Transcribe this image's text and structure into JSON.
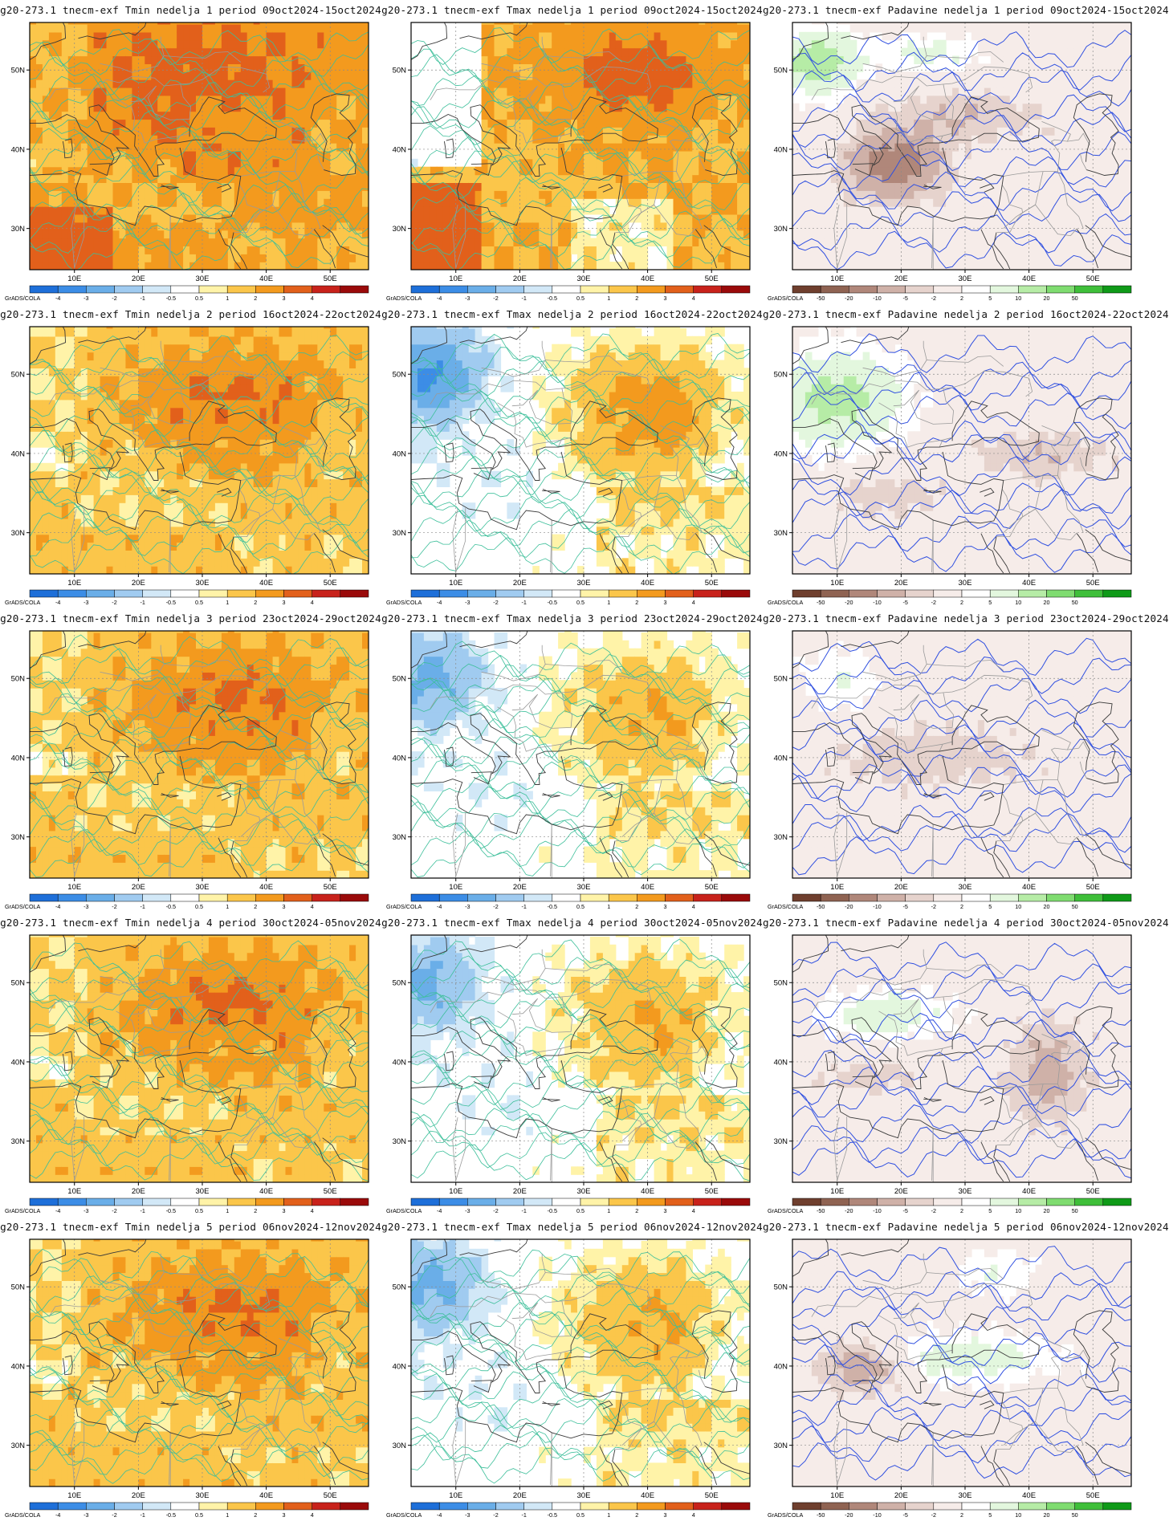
{
  "figure": {
    "panels": [
      {
        "title": "g20-273.1 tnecm-exf Tmin nedelja 1 period 09oct2024-15oct2024",
        "variable": "Tmin",
        "week": 1
      },
      {
        "title": "g20-273.1 tnecm-exf Tmax nedelja 1 period 09oct2024-15oct2024",
        "variable": "Tmax",
        "week": 1
      },
      {
        "title": "g20-273.1 tnecm-exf Padavine nedelja 1 period 09oct2024-15oct2024",
        "variable": "Padavine",
        "week": 1
      },
      {
        "title": "g20-273.1 tnecm-exf Tmin nedelja 2 period 16oct2024-22oct2024",
        "variable": "Tmin",
        "week": 2
      },
      {
        "title": "g20-273.1 tnecm-exf Tmax nedelja 2 period 16oct2024-22oct2024",
        "variable": "Tmax",
        "week": 2
      },
      {
        "title": "g20-273.1 tnecm-exf Padavine nedelja 2 period 16oct2024-22oct2024",
        "variable": "Padavine",
        "week": 2
      },
      {
        "title": "g20-273.1 tnecm-exf Tmin nedelja 3 period 23oct2024-29oct2024",
        "variable": "Tmin",
        "week": 3
      },
      {
        "title": "g20-273.1 tnecm-exf Tmax nedelja 3 period 23oct2024-29oct2024",
        "variable": "Tmax",
        "week": 3
      },
      {
        "title": "g20-273.1 tnecm-exf Padavine nedelja 3 period 23oct2024-29oct2024",
        "variable": "Padavine",
        "week": 3
      },
      {
        "title": "g20-273.1 tnecm-exf Tmin nedelja 4 period 30oct2024-05nov2024",
        "variable": "Tmin",
        "week": 4
      },
      {
        "title": "g20-273.1 tnecm-exf Tmax nedelja 4 period 30oct2024-05nov2024",
        "variable": "Tmax",
        "week": 4
      },
      {
        "title": "g20-273.1 tnecm-exf Padavine nedelja 4 period 30oct2024-05nov2024",
        "variable": "Padavine",
        "week": 4
      },
      {
        "title": "g20-273.1 tnecm-exf Tmin nedelja 5 period 06nov2024-12nov2024",
        "variable": "Tmin",
        "week": 5
      },
      {
        "title": "g20-273.1 tnecm-exf Tmax nedelja 5 period 06nov2024-12nov2024",
        "variable": "Tmax",
        "week": 5
      },
      {
        "title": "g20-273.1 tnecm-exf Padavine nedelja 5 period 06nov2024-12nov2024",
        "variable": "Padavine",
        "week": 5
      }
    ],
    "lon_ticks": [
      "10E",
      "20E",
      "30E",
      "40E",
      "50E"
    ],
    "lat_ticks": [
      "50N",
      "40N",
      "30N"
    ],
    "credit": "GrADS/COLA",
    "colorbars": {
      "temperature": {
        "labels": [
          "-4",
          "-3",
          "-2",
          "-1",
          "-0.5",
          "0.5",
          "1",
          "2",
          "3",
          "4"
        ],
        "colors": [
          "#1e6fd9",
          "#3c8de6",
          "#6aaee8",
          "#a0cbf0",
          "#d2e8f7",
          "#ffffff",
          "#fff3a8",
          "#fbc64a",
          "#f39a1e",
          "#e2601b",
          "#c8221b",
          "#9a0a0a"
        ]
      },
      "precip": {
        "labels": [
          "-50",
          "-20",
          "-10",
          "-5",
          "-2",
          "2",
          "5",
          "10",
          "20",
          "50"
        ],
        "colors": [
          "#6f3f2e",
          "#8f6352",
          "#b0877a",
          "#cfb1a8",
          "#e6d3cd",
          "#f6ece9",
          "#ffffff",
          "#e3f7de",
          "#b6eca6",
          "#7fdc70",
          "#3fbf3a",
          "#0f9a18"
        ]
      }
    }
  }
}
